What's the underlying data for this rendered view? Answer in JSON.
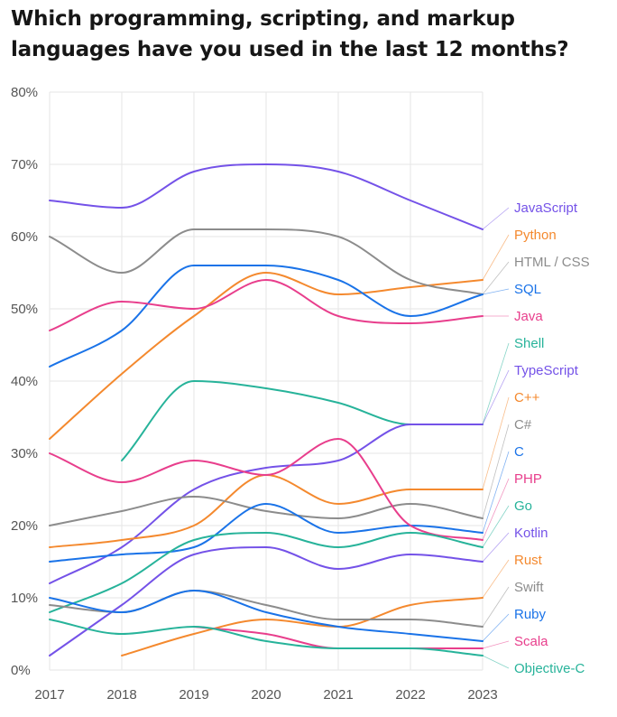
{
  "title": "Which programming, scripting, and markup languages have you used in the last 12 months?",
  "chart_data": {
    "type": "line",
    "title": "Which programming, scripting, and markup languages have you used in the last 12 months?",
    "xlabel": "",
    "ylabel": "",
    "x": [
      2017,
      2018,
      2019,
      2020,
      2021,
      2022,
      2023
    ],
    "x_ticks": [
      "2017",
      "2018",
      "2019",
      "2020",
      "2021",
      "2022",
      "2023"
    ],
    "y_ticks": [
      "0%",
      "10%",
      "20%",
      "30%",
      "40%",
      "50%",
      "60%",
      "70%",
      "80%"
    ],
    "ylim": [
      0,
      80
    ],
    "y_unit": "%",
    "grid": true,
    "legend_placement": "right",
    "series": [
      {
        "name": "JavaScript",
        "color": "#7452e8",
        "values": [
          65,
          64,
          69,
          70,
          69,
          65,
          61
        ]
      },
      {
        "name": "Python",
        "color": "#f4892e",
        "values": [
          32,
          41,
          49,
          55,
          52,
          53,
          54
        ]
      },
      {
        "name": "HTML / CSS",
        "color": "#8c8c8c",
        "values": [
          60,
          55,
          61,
          61,
          60,
          54,
          52
        ]
      },
      {
        "name": "SQL",
        "color": "#1a73e8",
        "values": [
          42,
          47,
          56,
          56,
          54,
          49,
          52
        ]
      },
      {
        "name": "Java",
        "color": "#e83e8c",
        "values": [
          47,
          51,
          50,
          54,
          49,
          48,
          49
        ]
      },
      {
        "name": "Shell",
        "color": "#27b39a",
        "values": [
          null,
          29,
          40,
          39,
          37,
          34,
          34
        ]
      },
      {
        "name": "TypeScript",
        "color": "#7452e8",
        "values": [
          12,
          17,
          25,
          28,
          29,
          34,
          34
        ]
      },
      {
        "name": "C++",
        "color": "#f4892e",
        "values": [
          17,
          18,
          20,
          27,
          23,
          25,
          25
        ]
      },
      {
        "name": "C#",
        "color": "#8c8c8c",
        "values": [
          20,
          22,
          24,
          22,
          21,
          23,
          21
        ]
      },
      {
        "name": "C",
        "color": "#1a73e8",
        "values": [
          15,
          16,
          17,
          23,
          19,
          20,
          19
        ]
      },
      {
        "name": "PHP",
        "color": "#e83e8c",
        "values": [
          30,
          26,
          29,
          27,
          32,
          20,
          18
        ]
      },
      {
        "name": "Go",
        "color": "#27b39a",
        "values": [
          8,
          12,
          18,
          19,
          17,
          19,
          17
        ]
      },
      {
        "name": "Kotlin",
        "color": "#7452e8",
        "values": [
          2,
          9,
          16,
          17,
          14,
          16,
          15
        ]
      },
      {
        "name": "Rust",
        "color": "#f4892e",
        "values": [
          null,
          2,
          5,
          7,
          6,
          9,
          10
        ]
      },
      {
        "name": "Swift",
        "color": "#8c8c8c",
        "values": [
          9,
          8,
          11,
          9,
          7,
          7,
          6
        ]
      },
      {
        "name": "Ruby",
        "color": "#1a73e8",
        "values": [
          10,
          8,
          11,
          8,
          6,
          5,
          4
        ]
      },
      {
        "name": "Scala",
        "color": "#e83e8c",
        "values": [
          null,
          null,
          6,
          5,
          3,
          3,
          3
        ]
      },
      {
        "name": "Objective-C",
        "color": "#27b39a",
        "values": [
          7,
          5,
          6,
          4,
          3,
          3,
          2
        ]
      }
    ]
  }
}
